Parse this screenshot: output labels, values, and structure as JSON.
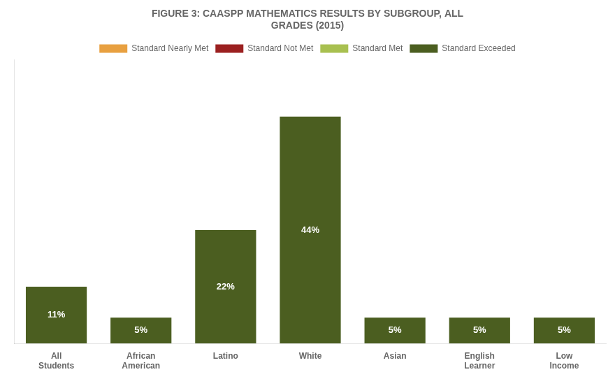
{
  "chart_data": {
    "type": "bar",
    "title": [
      "FIGURE 3: CAASPP MATHEMATICS RESULTS BY SUBGROUP, ALL",
      "GRADES (2015)"
    ],
    "categories": [
      [
        "All",
        "Students"
      ],
      [
        "African",
        "American"
      ],
      [
        "Latino"
      ],
      [
        "White"
      ],
      [
        "Asian"
      ],
      [
        "English",
        "Learner"
      ],
      [
        "Low",
        "Income"
      ]
    ],
    "series": [
      {
        "name": "Standard Nearly Met",
        "color": "#E8A040",
        "values": [
          null,
          null,
          null,
          null,
          null,
          null,
          null
        ]
      },
      {
        "name": "Standard Not Met",
        "color": "#9B2020",
        "values": [
          null,
          null,
          null,
          null,
          null,
          null,
          null
        ]
      },
      {
        "name": "Standard Met",
        "color": "#A8C050",
        "values": [
          null,
          null,
          null,
          null,
          null,
          null,
          null
        ]
      },
      {
        "name": "Standard Exceeded",
        "color": "#4B5E20",
        "values": [
          11,
          5,
          22,
          44,
          5,
          5,
          5
        ],
        "value_labels": [
          "11%",
          "5%",
          "22%",
          "44%",
          "5%",
          "5%",
          "5%"
        ]
      }
    ],
    "ylim": [
      0,
      55
    ],
    "grid": false,
    "legend": "top",
    "data_labels": true,
    "tick_labels": "x"
  }
}
